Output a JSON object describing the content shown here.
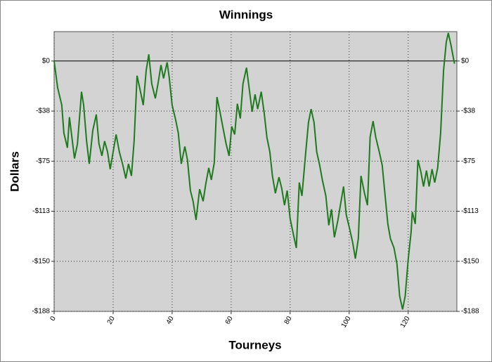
{
  "chart_data": {
    "type": "line",
    "title": "Winnings",
    "x_label": "Tourneys",
    "y_label": "Dollars",
    "x": [
      0,
      1.2,
      2.6,
      3.3,
      4.5,
      5.2,
      6.9,
      7.9,
      9.3,
      10,
      11,
      11.9,
      13.1,
      14.3,
      15.2,
      16.2,
      17.1,
      18.1,
      19,
      20,
      21,
      22.1,
      23.3,
      24.3,
      25.2,
      26.2,
      27.1,
      28.1,
      29,
      30.2,
      31.2,
      32.1,
      33.1,
      34.3,
      35.2,
      36.2,
      37.1,
      38.3,
      39,
      40,
      41.2,
      42.1,
      43.1,
      44.3,
      45.2,
      46.2,
      47.1,
      48.1,
      49.3,
      50.5,
      51.4,
      52.4,
      53.3,
      54.3,
      55.2,
      56.2,
      57.4,
      58.3,
      59.3,
      60.2,
      61.2,
      62.1,
      63.1,
      64,
      65.2,
      66.2,
      67.1,
      68.1,
      69,
      70.2,
      71.2,
      72.1,
      73.1,
      74,
      75,
      76.2,
      77.1,
      78.1,
      79,
      80,
      81.2,
      82.1,
      83.1,
      84,
      85.2,
      86.2,
      87.1,
      88.1,
      89,
      90,
      90.9,
      92.1,
      93.1,
      94,
      95,
      96.2,
      97.1,
      98.1,
      99,
      100.2,
      101.2,
      102.1,
      103.1,
      104,
      105.2,
      106.2,
      107.1,
      108.1,
      109,
      110.2,
      111.2,
      112.1,
      113.1,
      114,
      115.2,
      116.2,
      117.1,
      118.1,
      119,
      120,
      121,
      121.4,
      122.4,
      123.3,
      124.3,
      125.2,
      126.2,
      127.1,
      128.1,
      129,
      130,
      131,
      132,
      132.9,
      133.6,
      134.5,
      135.7
    ],
    "series": [
      {
        "name": "Winnings",
        "color": "#1f7a1f",
        "values": [
          0,
          -20,
          -33,
          -54,
          -65,
          -42,
          -73,
          -62,
          -23,
          -33,
          -60,
          -77,
          -52,
          -40,
          -62,
          -71,
          -60,
          -68,
          -81,
          -68,
          -55,
          -68,
          -78,
          -88,
          -77,
          -86,
          -60,
          -11,
          -20,
          -33,
          -7,
          5,
          -17,
          -28,
          -17,
          -3,
          -13,
          -1,
          -12,
          -33,
          -44,
          -54,
          -77,
          -64,
          -74,
          -97,
          -105,
          -119,
          -96,
          -105,
          -92,
          -80,
          -89,
          -76,
          -27,
          -38,
          -52,
          -62,
          -71,
          -49,
          -55,
          -32,
          -43,
          -17,
          -5,
          -22,
          -38,
          -25,
          -36,
          -23,
          -39,
          -57,
          -68,
          -86,
          -99,
          -87,
          -95,
          -108,
          -97,
          -118,
          -131,
          -140,
          -91,
          -101,
          -70,
          -46,
          -36,
          -46,
          -68,
          -78,
          -89,
          -101,
          -123,
          -111,
          -132,
          -119,
          -107,
          -94,
          -115,
          -126,
          -136,
          -148,
          -133,
          -86,
          -99,
          -108,
          -57,
          -45,
          -57,
          -68,
          -78,
          -99,
          -122,
          -133,
          -140,
          -152,
          -176,
          -186,
          -176,
          -149,
          -128,
          -113,
          -122,
          -74,
          -83,
          -94,
          -82,
          -94,
          -81,
          -91,
          -80,
          -54,
          -7,
          14,
          21,
          12,
          -2
        ]
      }
    ],
    "xlim": [
      0,
      136.5
    ],
    "xticks": [
      0,
      20,
      40,
      60,
      80,
      100,
      120
    ],
    "ylim": [
      -187.5,
      22
    ],
    "yticks": [
      {
        "value": 0,
        "label": "$0"
      },
      {
        "value": -37.5,
        "label": "-$38"
      },
      {
        "value": -75,
        "label": "-$75"
      },
      {
        "value": -112.5,
        "label": "-$113"
      },
      {
        "value": -150,
        "label": "-$150"
      },
      {
        "value": -187.5,
        "label": "-$188"
      }
    ],
    "grid": true
  }
}
